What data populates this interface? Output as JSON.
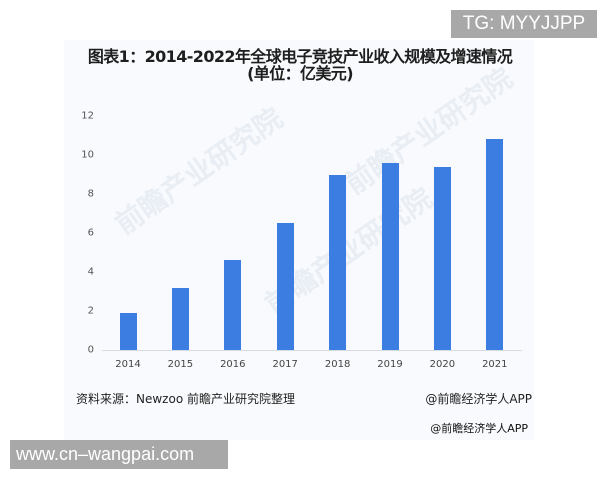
{
  "watermarks": {
    "top": "TG: MYYJJPP",
    "bottom": "www.cn–wangpai.com",
    "background": "前瞻产业研究院"
  },
  "header": {
    "title_line1": "图表1：2014-2022年全球电子竞技产业收入规模及增速情况",
    "title_line2": "(单位：亿美元)"
  },
  "footer": {
    "source": "资料来源：Newzoo 前瞻产业研究院整理",
    "credit1": "@前瞻经济学人APP",
    "credit2": "@前瞻经济学人APP"
  },
  "colors": {
    "bar": "#3b7de0",
    "panel": "#f8fafd"
  },
  "chart_data": {
    "type": "bar",
    "title": "图表1：2014-2022年全球电子竞技产业收入规模及增速情况 (单位：亿美元)",
    "xlabel": "",
    "ylabel": "亿美元",
    "categories": [
      "2014",
      "2015",
      "2016",
      "2017",
      "2018",
      "2019",
      "2020",
      "2021"
    ],
    "values": [
      1.9,
      3.2,
      4.6,
      6.5,
      9.0,
      9.6,
      9.4,
      10.8
    ],
    "yticks": [
      "0",
      "2",
      "4",
      "6",
      "8",
      "10",
      "12"
    ],
    "ylim": [
      0,
      12
    ],
    "grid": false,
    "legend": null
  }
}
